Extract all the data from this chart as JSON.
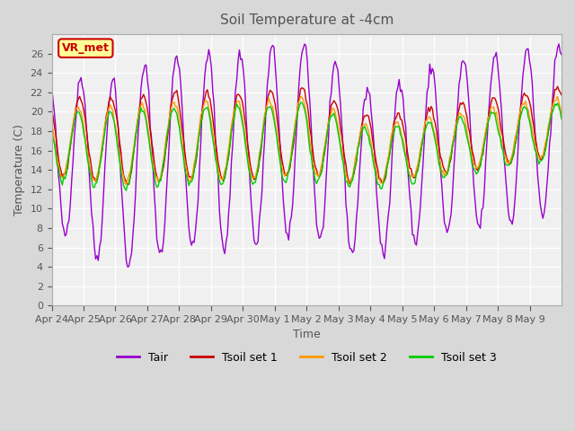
{
  "title": "Soil Temperature at -4cm",
  "xlabel": "Time",
  "ylabel": "Temperature (C)",
  "ylim": [
    0,
    28
  ],
  "yticks": [
    0,
    2,
    4,
    6,
    8,
    10,
    12,
    14,
    16,
    18,
    20,
    22,
    24,
    26
  ],
  "xtick_labels": [
    "Apr 24",
    "Apr 25",
    "Apr 26",
    "Apr 27",
    "Apr 28",
    "Apr 29",
    "Apr 30",
    "May 1",
    "May 2",
    "May 3",
    "May 4",
    "May 5",
    "May 6",
    "May 7",
    "May 8",
    "May 9"
  ],
  "colors": {
    "Tair": "#9900cc",
    "Tsoil_set1": "#cc0000",
    "Tsoil_set2": "#ff9900",
    "Tsoil_set3": "#00cc00"
  },
  "plot_bg_color": "#f0f0f0",
  "title_color": "#555555",
  "axis_color": "#555555"
}
